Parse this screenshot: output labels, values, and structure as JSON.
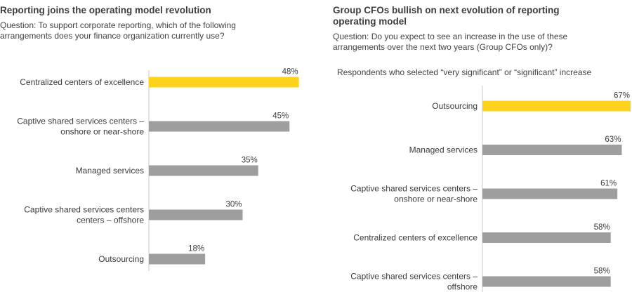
{
  "colors": {
    "highlight": "#ffd21c",
    "bar": "#9e9e9e",
    "axis": "#c8c8c8"
  },
  "left": {
    "title": "Reporting joins the operating model revolution",
    "question_line1": "Question: To support corporate reporting, which of the following",
    "question_line2": "arrangements does your finance organization currently use?"
  },
  "right": {
    "title_line1": "Group CFOs bullish on next evolution of reporting",
    "title_line2": "operating model",
    "question_line1": "Question: Do you expect to see an increase in the use of these",
    "question_line2": "arrangements over the next two years (Group CFOs only)?",
    "subnote": "Respondents who selected “very significant” or “significant” increase"
  },
  "chart_data": [
    {
      "type": "bar",
      "orientation": "horizontal",
      "categories": [
        [
          "Centralized centers of excellence"
        ],
        [
          "Captive shared services centers –",
          "onshore or near-shore"
        ],
        [
          "Managed services"
        ],
        [
          "Captive shared services centers",
          "centers – offshore"
        ],
        [
          "Outsourcing"
        ]
      ],
      "values": [
        48,
        45,
        35,
        30,
        18
      ],
      "labels": [
        "48%",
        "45%",
        "35%",
        "30%",
        "18%"
      ],
      "highlight_index": 0,
      "unit": "%"
    },
    {
      "type": "bar",
      "orientation": "horizontal",
      "categories": [
        [
          "Outsourcing"
        ],
        [
          "Managed services"
        ],
        [
          "Captive shared services centers –",
          "onshore or near-shore"
        ],
        [
          "Centralized centers of excellence"
        ],
        [
          "Captive shared services centers –",
          "offshore"
        ]
      ],
      "values": [
        67,
        63,
        61,
        58,
        58
      ],
      "labels": [
        "67%",
        "63%",
        "61%",
        "58%",
        "58%"
      ],
      "highlight_index": 0,
      "unit": "%"
    }
  ]
}
